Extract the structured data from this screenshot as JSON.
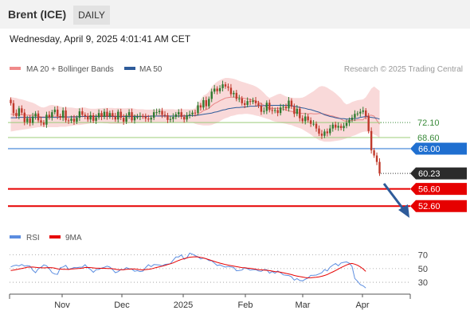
{
  "header": {
    "title": "Brent (ICE)",
    "timeframe_badge": "DAILY",
    "timestamp": "Wednesday, April 9, 2025 4:01:41 AM CET"
  },
  "legend": {
    "ma20_label": "MA 20 + Bollinger Bands",
    "ma50_label": "MA 50",
    "credit": "Research © 2025 Trading Central"
  },
  "rsi_legend": {
    "rsi_label": "RSI",
    "ma9_label": "9MA"
  },
  "colors": {
    "candle_up": "#2f7a2f",
    "candle_down": "#c0392b",
    "bollinger_fill": "#f7c9c9",
    "ma20": "#e88585",
    "ma50": "#2e5b9a",
    "support_green": "#9ccc7a",
    "resistance_red": "#e60000",
    "current_blue": "#1f6fd0",
    "current_price_box": "#2b2b2b",
    "rsi_line": "#5b8de0",
    "rsi_ma": "#e60000",
    "arrow": "#2e5b9a"
  },
  "chart_data": {
    "type": "candlestick",
    "price_range": [
      48.0,
      82.5
    ],
    "x_tick_labels": [
      "Nov",
      "Dec",
      "2025",
      "Feb",
      "Mar",
      "Apr"
    ],
    "levels": [
      {
        "value": 72.1,
        "label": "72.10",
        "style": "dotted-green"
      },
      {
        "value": 68.6,
        "label": "68.60",
        "style": "solid-green"
      },
      {
        "value": 66.0,
        "label": "66.00",
        "style": "solid-blue-tag"
      },
      {
        "value": 60.23,
        "label": "60.23",
        "style": "dotted-dark-tag",
        "note": "current price"
      },
      {
        "value": 56.6,
        "label": "56.60",
        "style": "solid-red-tag"
      },
      {
        "value": 52.6,
        "label": "52.60",
        "style": "solid-red-tag"
      }
    ],
    "closes": [
      76.6,
      74.3,
      73.6,
      75.4,
      74.4,
      72.2,
      73.1,
      72.0,
      73.5,
      74.2,
      72.6,
      72.1,
      71.6,
      73.9,
      73.3,
      74.5,
      75.1,
      73.6,
      73.2,
      74.9,
      72.6,
      72.5,
      73.0,
      72.3,
      73.2,
      74.7,
      73.9,
      73.6,
      72.8,
      73.8,
      72.5,
      73.3,
      74.3,
      73.4,
      74.6,
      73.5,
      74.3,
      73.5,
      72.8,
      74.6,
      73.2,
      72.3,
      73.7,
      74.5,
      72.6,
      73.4,
      73.4,
      73.6,
      73.5,
      73.0,
      72.8,
      73.2,
      74.5,
      74.5,
      74.8,
      73.9,
      73.8,
      72.7,
      72.9,
      73.4,
      74.0,
      74.5,
      73.4,
      72.8,
      73.8,
      74.0,
      74.4,
      74.3,
      76.1,
      75.6,
      77.3,
      75.9,
      77.6,
      79.3,
      80.0,
      79.4,
      80.1,
      81.0,
      80.5,
      80.2,
      78.7,
      79.0,
      77.6,
      77.7,
      76.6,
      76.2,
      77.1,
      76.9,
      77.2,
      76.6,
      76.0,
      74.6,
      74.8,
      76.7,
      75.0,
      74.8,
      75.0,
      74.3,
      75.6,
      75.8,
      75.4,
      77.2,
      75.8,
      74.1,
      75.3,
      73.1,
      72.4,
      73.5,
      72.6,
      71.8,
      71.8,
      70.7,
      69.5,
      69.0,
      70.0,
      69.6,
      70.7,
      71.6,
      70.9,
      71.3,
      70.8,
      71.3,
      72.0,
      72.7,
      73.2,
      74.1,
      74.2,
      74.6,
      74.9,
      73.6,
      70.1,
      65.6,
      64.4,
      62.9,
      60.2
    ],
    "bollinger": {
      "upper": [
        78.0,
        77.9,
        77.8,
        77.6,
        77.5,
        77.3,
        77.1,
        76.9,
        76.7,
        76.4,
        76.0,
        75.7,
        75.6,
        75.8,
        76.1,
        76.2,
        76.1,
        76.0,
        75.8,
        75.7,
        75.6,
        75.6,
        75.6,
        75.5,
        75.4,
        75.5,
        75.6,
        75.6,
        75.4,
        75.3,
        75.3,
        75.3,
        75.4,
        75.4,
        75.5,
        75.5,
        75.5,
        75.5,
        75.4,
        75.5,
        75.4,
        75.4,
        75.4,
        75.5,
        75.4,
        75.3,
        75.2,
        75.2,
        75.2,
        75.1,
        75.1,
        75.1,
        75.1,
        75.1,
        75.3,
        75.2,
        75.2,
        75.2,
        75.2,
        75.2,
        75.1,
        75.2,
        75.2,
        75.2,
        75.2,
        75.2,
        75.2,
        75.4,
        76.5,
        77.4,
        78.4,
        78.7,
        79.3,
        80.4,
        81.1,
        81.6,
        82.0,
        82.3,
        82.5,
        82.5,
        82.4,
        82.3,
        82.1,
        81.8,
        81.6,
        81.4,
        81.2,
        81.0,
        80.8,
        80.5,
        80.1,
        79.6,
        79.0,
        78.3,
        77.8,
        78.1,
        78.4,
        78.7,
        78.8,
        78.5,
        78.2,
        78.0,
        77.9,
        77.8,
        77.8,
        77.8,
        77.9,
        78.2,
        78.6,
        79.0,
        79.4,
        79.9,
        80.4,
        80.6,
        80.5,
        80.2,
        79.8,
        79.4,
        78.9,
        78.3,
        77.7,
        76.8,
        76.3,
        76.5,
        76.9,
        77.1,
        77.3,
        77.4,
        77.5,
        78.0,
        79.0,
        80.0,
        80.5,
        80.0,
        79.5
      ],
      "lower": [
        70.0,
        70.1,
        70.2,
        70.3,
        70.4,
        70.5,
        70.6,
        70.7,
        70.8,
        70.9,
        71.0,
        71.0,
        71.1,
        71.0,
        71.0,
        71.0,
        71.0,
        71.0,
        71.1,
        71.1,
        71.1,
        71.2,
        71.3,
        71.4,
        71.5,
        71.5,
        71.6,
        71.7,
        71.8,
        71.9,
        72.0,
        72.0,
        72.0,
        72.0,
        71.9,
        71.9,
        71.8,
        71.8,
        71.8,
        71.8,
        71.8,
        71.9,
        71.9,
        71.9,
        72.0,
        72.0,
        72.0,
        72.0,
        72.0,
        72.1,
        72.1,
        72.1,
        72.1,
        72.1,
        72.1,
        72.1,
        72.1,
        72.1,
        72.1,
        72.1,
        72.1,
        72.1,
        72.1,
        72.1,
        72.1,
        72.2,
        72.1,
        71.8,
        71.6,
        71.5,
        71.4,
        71.4,
        71.4,
        71.5,
        71.8,
        72.0,
        72.4,
        72.8,
        73.1,
        73.3,
        73.6,
        73.7,
        73.9,
        74.0,
        74.0,
        74.1,
        74.1,
        74.0,
        73.9,
        73.7,
        73.6,
        73.4,
        73.2,
        73.0,
        72.8,
        72.5,
        72.3,
        72.2,
        72.0,
        71.9,
        71.8,
        71.6,
        71.5,
        71.2,
        71.0,
        70.8,
        70.5,
        70.1,
        69.7,
        69.3,
        68.8,
        68.4,
        68.0,
        67.8,
        67.6,
        67.6,
        67.6,
        67.7,
        67.8,
        67.9,
        68.0,
        68.2,
        68.4,
        68.6,
        68.9,
        69.1,
        69.4,
        69.7,
        69.9,
        70.0,
        69.9,
        69.6,
        69.3,
        69.0,
        68.5
      ]
    },
    "ma20": [
      74.0,
      74.0,
      74.0,
      74.0,
      73.9,
      73.9,
      73.8,
      73.8,
      73.8,
      73.7,
      73.6,
      73.4,
      73.4,
      73.4,
      73.5,
      73.6,
      73.6,
      73.5,
      73.5,
      73.5,
      73.4,
      73.4,
      73.5,
      73.5,
      73.5,
      73.5,
      73.5,
      73.6,
      73.6,
      73.6,
      73.6,
      73.6,
      73.7,
      73.7,
      73.7,
      73.7,
      73.7,
      73.7,
      73.6,
      73.6,
      73.6,
      73.6,
      73.7,
      73.7,
      73.7,
      73.7,
      73.6,
      73.6,
      73.6,
      73.6,
      73.6,
      73.6,
      73.6,
      73.6,
      73.7,
      73.7,
      73.7,
      73.6,
      73.6,
      73.6,
      73.6,
      73.7,
      73.7,
      73.7,
      73.7,
      73.7,
      73.7,
      73.6,
      74.1,
      74.4,
      74.9,
      75.1,
      75.4,
      76.0,
      76.5,
      76.8,
      77.2,
      77.5,
      77.8,
      77.9,
      78.0,
      78.0,
      78.0,
      77.9,
      77.8,
      77.7,
      77.6,
      77.5,
      77.3,
      77.1,
      76.8,
      76.5,
      76.1,
      75.7,
      75.3,
      75.3,
      75.4,
      75.4,
      75.4,
      75.2,
      75.0,
      74.8,
      74.7,
      74.5,
      74.4,
      74.3,
      74.2,
      74.2,
      74.1,
      74.2,
      74.1,
      74.1,
      74.2,
      74.2,
      74.1,
      73.9,
      73.7,
      73.6,
      73.4,
      73.2,
      72.9,
      72.5,
      72.4,
      72.5,
      72.6,
      72.6,
      72.7,
      72.7,
      72.7,
      73.5,
      73.7,
      73.8,
      73.6,
      72.6,
      71.7
    ],
    "ma50": [
      73.2,
      73.2,
      73.2,
      73.3,
      73.3,
      73.3,
      73.3,
      73.3,
      73.3,
      73.3,
      73.3,
      73.3,
      73.3,
      73.3,
      73.3,
      73.3,
      73.3,
      73.3,
      73.4,
      73.4,
      73.4,
      73.4,
      73.4,
      73.4,
      73.4,
      73.5,
      73.5,
      73.5,
      73.5,
      73.5,
      73.5,
      73.5,
      73.5,
      73.5,
      73.5,
      73.5,
      73.5,
      73.5,
      73.5,
      73.5,
      73.5,
      73.5,
      73.5,
      73.5,
      73.5,
      73.5,
      73.5,
      73.5,
      73.5,
      73.5,
      73.5,
      73.6,
      73.6,
      73.6,
      73.6,
      73.6,
      73.6,
      73.6,
      73.6,
      73.6,
      73.6,
      73.6,
      73.6,
      73.6,
      73.6,
      73.7,
      73.7,
      73.7,
      73.8,
      73.9,
      74.0,
      74.1,
      74.2,
      74.3,
      74.5,
      74.6,
      74.8,
      75.0,
      75.1,
      75.3,
      75.4,
      75.5,
      75.6,
      75.6,
      75.7,
      75.7,
      75.8,
      75.9,
      75.9,
      75.9,
      76.0,
      76.0,
      76.0,
      76.1,
      76.1,
      76.1,
      76.1,
      76.1,
      76.1,
      76.1,
      76.1,
      76.1,
      76.0,
      75.9,
      75.8,
      75.6,
      75.5,
      75.4,
      75.2,
      75.1,
      74.9,
      74.7,
      74.5,
      74.2,
      73.9,
      73.7,
      73.5,
      73.4,
      73.2,
      73.1,
      73.0,
      73.0,
      72.9,
      72.9,
      73.0,
      73.0,
      73.1,
      73.3,
      73.4,
      73.5,
      73.4,
      73.3,
      73.2,
      73.1,
      72.9
    ],
    "rsi": {
      "range": [
        15,
        80
      ],
      "levels": [
        70,
        50,
        30
      ],
      "series": [
        {
          "name": "RSI",
          "values": [
            52.4,
            54.2,
            55.0,
            53.9,
            56.0,
            53.7,
            54.3,
            53.7,
            47.6,
            44.0,
            49.8,
            51.9,
            55.4,
            54.1,
            49.8,
            44.1,
            42.0,
            41.6,
            51.2,
            52.4,
            54.7,
            48.8,
            50.0,
            51.6,
            51.3,
            52.0,
            52.2,
            55.6,
            51.2,
            48.7,
            44.6,
            48.3,
            48.8,
            50.7,
            51.9,
            53.5,
            52.2,
            48.6,
            44.0,
            45.5,
            48.7,
            48.2,
            51.4,
            49.8,
            49.1,
            46.1,
            47.0,
            45.6,
            46.3,
            51.4,
            55.6,
            52.8,
            55.9,
            55.6,
            55.2,
            54.0,
            56.1,
            56.5,
            57.0,
            62.3,
            66.9,
            67.0,
            70.0,
            63.6,
            65.8,
            72.6,
            71.1,
            69.0,
            67.1,
            64.1,
            65.5,
            64.4,
            61.7,
            61.4,
            57.9,
            54.6,
            55.4,
            53.5,
            52.1,
            53.1,
            52.4,
            51.7,
            46.8,
            47.3,
            47.9,
            51.1,
            49.8,
            47.9,
            48.3,
            48.4,
            46.6,
            45.9,
            48.5,
            48.4,
            43.3,
            45.6,
            43.3,
            46.6,
            44.0,
            40.9,
            40.2,
            39.8,
            38.0,
            33.1,
            35.3,
            32.6,
            32.1,
            34.4,
            36.3,
            40.1,
            40.2,
            40.5,
            42.2,
            43.9,
            48.5,
            46.6,
            52.0,
            55.1,
            57.4,
            54.1,
            58.2,
            59.1,
            59.8,
            57.7,
            53.2,
            35.5,
            31.5,
            26.5,
            24.9,
            21.6
          ]
        },
        {
          "name": "9MA",
          "values": [
            47.3,
            47.8,
            48.6,
            49.4,
            50.2,
            51.0,
            52.0,
            52.2,
            52.3,
            51.9,
            51.5,
            51.2,
            51.0,
            51.2,
            51.5,
            51.2,
            50.6,
            49.6,
            49.3,
            49.0,
            48.9,
            48.8,
            49.3,
            49.7,
            49.9,
            50.3,
            50.8,
            51.6,
            51.7,
            51.5,
            51.0,
            50.5,
            50.5,
            50.4,
            50.5,
            50.2,
            50.1,
            49.8,
            49.1,
            48.4,
            48.3,
            48.3,
            48.9,
            49.1,
            49.5,
            49.4,
            48.9,
            48.3,
            48.1,
            48.5,
            49.0,
            49.5,
            50.6,
            51.7,
            52.6,
            53.5,
            54.6,
            55.8,
            57.0,
            58.3,
            60.1,
            61.9,
            63.4,
            64.5,
            65.6,
            66.6,
            67.0,
            67.2,
            67.0,
            66.4,
            65.5,
            64.3,
            63.1,
            61.8,
            60.4,
            59.1,
            58.0,
            56.9,
            55.9,
            55.1,
            54.4,
            53.7,
            52.8,
            52.1,
            51.5,
            51.2,
            50.8,
            50.4,
            49.8,
            49.1,
            48.6,
            48.2,
            47.9,
            47.5,
            47.0,
            46.3,
            45.7,
            45.3,
            44.7,
            43.9,
            43.0,
            42.2,
            41.2,
            40.0,
            39.1,
            38.3,
            37.6,
            36.9,
            36.5,
            36.6,
            37.0,
            37.4,
            38.0,
            38.8,
            40.0,
            41.4,
            43.3,
            45.2,
            47.2,
            49.3,
            51.4,
            53.4,
            55.3,
            56.8,
            57.5,
            56.4,
            54.8,
            52.5,
            49.6,
            45.9
          ]
        }
      ]
    }
  }
}
